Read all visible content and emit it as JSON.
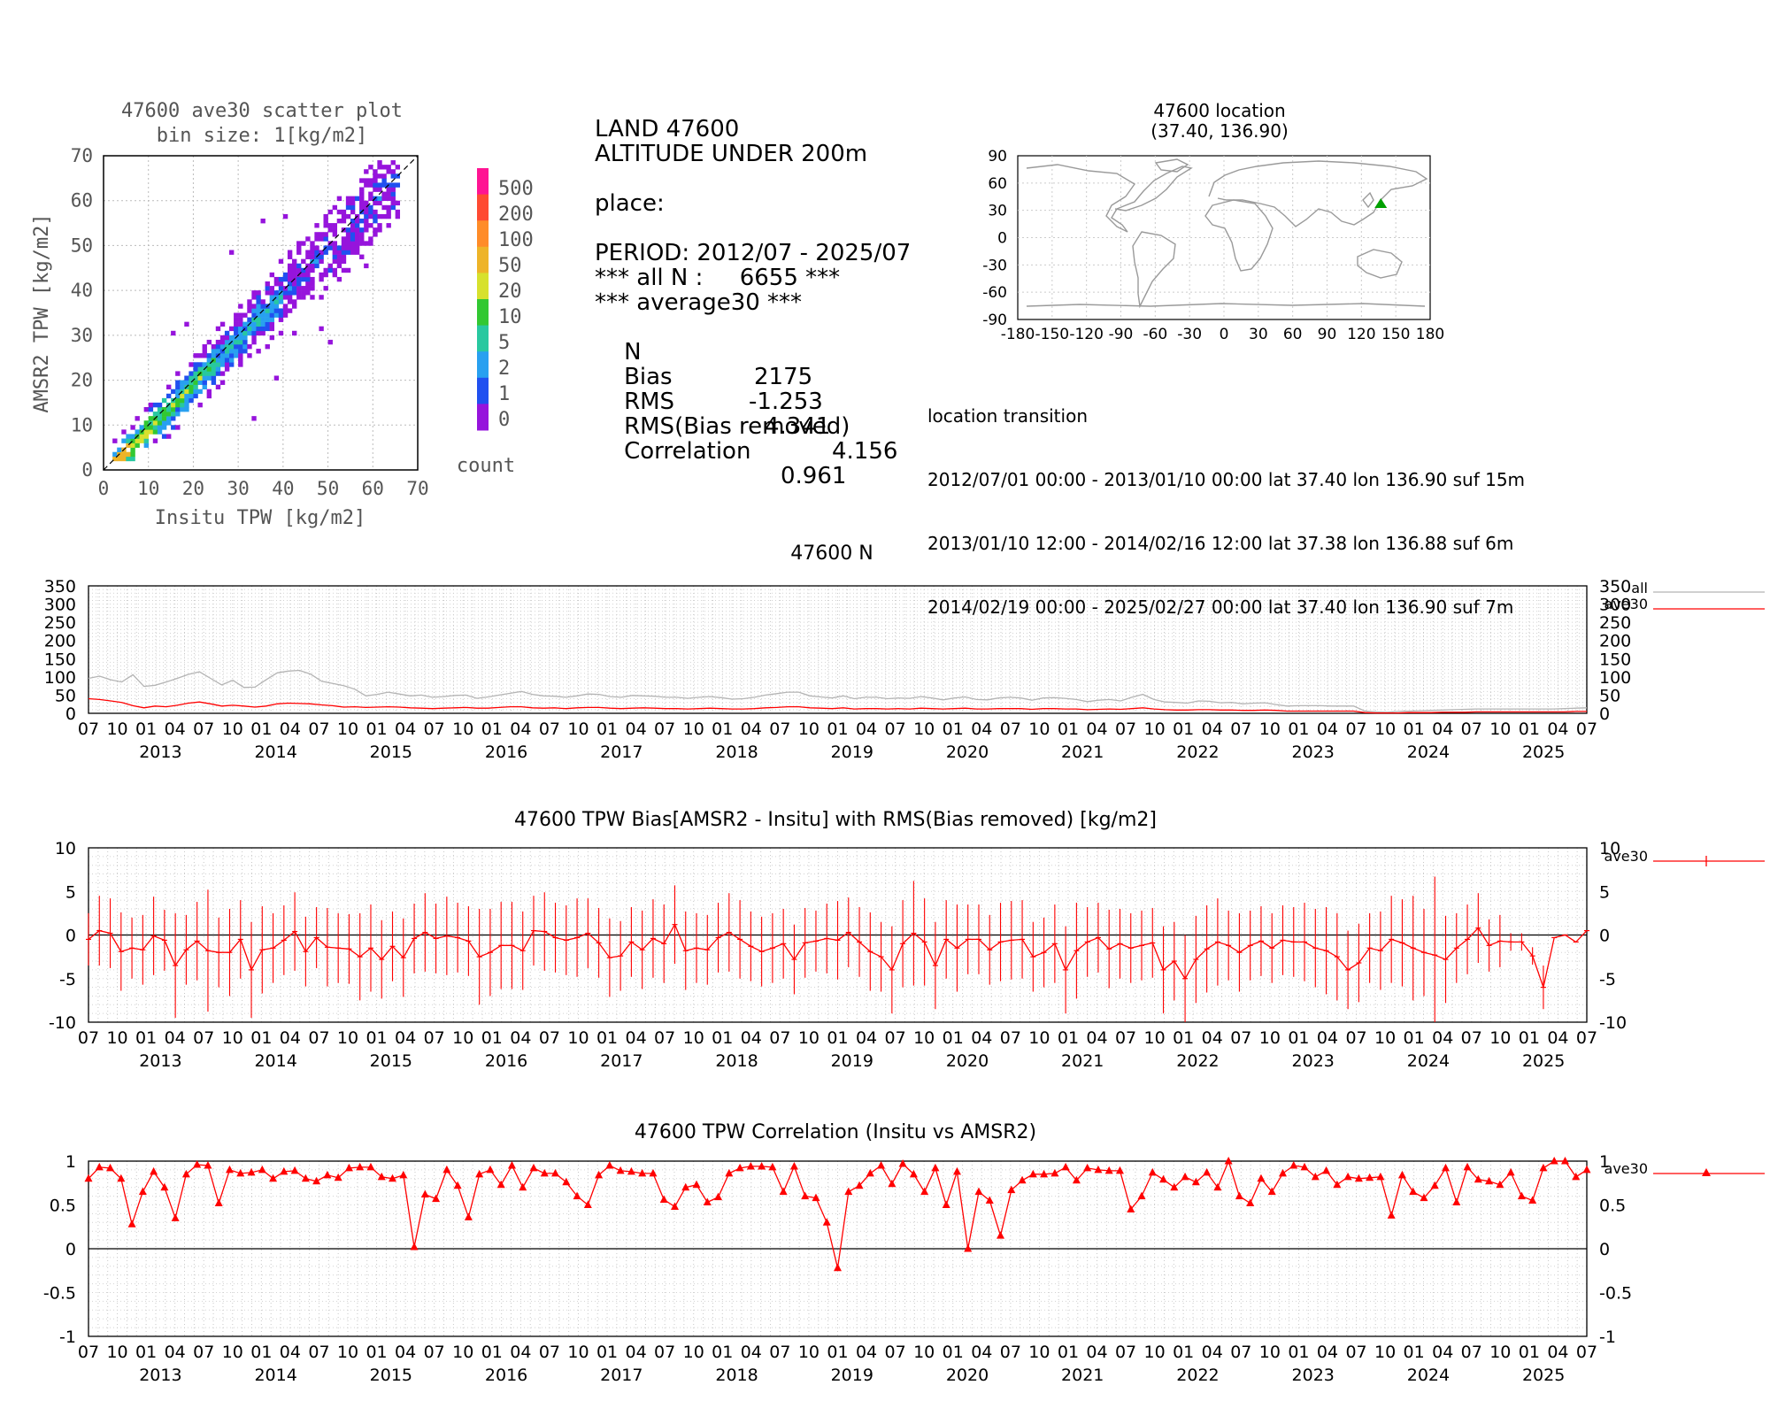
{
  "scatter": {
    "title_line1": "47600 ave30 scatter plot",
    "title_line2": "bin size: 1[kg/m2]",
    "xlabel": "Insitu TPW [kg/m2]",
    "ylabel": "AMSR2 TPW [kg/m2]",
    "ticks": [
      "0",
      "10",
      "20",
      "30",
      "40",
      "50",
      "60",
      "70"
    ],
    "colorbar_labels": [
      "500",
      "200",
      "100",
      "50",
      "20",
      "10",
      "5",
      "2",
      "1",
      "0"
    ],
    "colorbar_colors": [
      "#ff1493",
      "#ff4a32",
      "#ff8c28",
      "#eeb428",
      "#d7e12d",
      "#32c832",
      "#28c8a0",
      "#28a0f0",
      "#2050f0",
      "#9614dc"
    ],
    "colorbar_title": "count"
  },
  "stats": {
    "line1": "LAND 47600",
    "line2": "ALTITUDE UNDER 200m",
    "place": "place:",
    "period": "PERIOD: 2012/07 - 2025/07",
    "alln": "*** all N :     6655 ***",
    "avg": "*** average30 ***",
    "n_label": "N",
    "n_value": "2175",
    "bias_label": "Bias",
    "bias_value": "-1.253",
    "rms_label": "RMS",
    "rms_value": "4.341",
    "rmsb_label": "RMS(Bias removed)",
    "rmsb_value": "4.156",
    "corr_label": "Correlation",
    "corr_value": "0.961"
  },
  "map": {
    "title_line1": "47600 location",
    "title_line2": "(37.40, 136.90)",
    "yticks": [
      "90",
      "60",
      "30",
      "0",
      "-30",
      "-60",
      "-90"
    ],
    "xticks": [
      "-180",
      "-150",
      "-120",
      "-90",
      "-60",
      "-30",
      "0",
      "30",
      "60",
      "90",
      "120",
      "150",
      "180"
    ],
    "lat": 37.4,
    "lon": 136.9,
    "marker_color": "#00a000"
  },
  "transition": {
    "title": "location transition",
    "rows": [
      "2012/07/01 00:00 - 2013/01/10 00:00 lat 37.40 lon 136.90 suf 15m",
      "2013/01/10 12:00 - 2014/02/16 12:00 lat 37.38 lon 136.88 suf 6m",
      "2014/02/19 00:00 - 2025/02/27 00:00 lat 37.40 lon 136.90 suf 7m"
    ]
  },
  "time_axis": {
    "month_labels": [
      "07",
      "10",
      "01",
      "04"
    ],
    "years": [
      "2013",
      "2014",
      "2015",
      "2016",
      "2017",
      "2018",
      "2019",
      "2020",
      "2021",
      "2022",
      "2023",
      "2024",
      "2025"
    ]
  },
  "chart_data": [
    {
      "type": "line",
      "title": "47600 N",
      "ylim": [
        0,
        350
      ],
      "yticks": [
        "350",
        "300",
        "250",
        "200",
        "150",
        "100",
        "50",
        "0"
      ],
      "series": [
        {
          "name": "all",
          "color": "#b4b4b4"
        },
        {
          "name": "ave30",
          "color": "#ff0000"
        }
      ],
      "all": [
        96,
        102,
        92,
        86,
        106,
        74,
        77,
        86,
        96,
        107,
        114,
        96,
        78,
        91,
        71,
        72,
        92,
        111,
        116,
        118,
        108,
        88,
        82,
        76,
        66,
        48,
        52,
        58,
        53,
        48,
        50,
        44,
        46,
        49,
        50,
        41,
        45,
        50,
        55,
        60,
        52,
        48,
        47,
        44,
        48,
        53,
        52,
        46,
        44,
        49,
        48,
        47,
        44,
        44,
        41,
        44,
        46,
        43,
        39,
        40,
        44,
        50,
        54,
        58,
        58,
        48,
        45,
        42,
        48,
        40,
        44,
        44,
        40,
        42,
        41,
        46,
        42,
        37,
        42,
        45,
        38,
        37,
        42,
        44,
        42,
        36,
        42,
        43,
        41,
        38,
        32,
        36,
        38,
        34,
        44,
        52,
        38,
        31,
        30,
        28,
        34,
        33,
        29,
        30,
        26,
        28,
        29,
        24,
        20,
        21,
        21,
        21,
        20,
        20,
        20,
        6,
        4,
        3,
        5,
        6,
        7,
        8,
        9,
        10,
        11,
        12,
        12,
        12,
        12,
        12,
        12,
        12,
        12,
        13,
        14,
        15
      ],
      "ave30": [
        40,
        38,
        34,
        30,
        21,
        15,
        20,
        18,
        22,
        28,
        31,
        26,
        20,
        22,
        20,
        17,
        20,
        26,
        28,
        27,
        26,
        23,
        21,
        17,
        18,
        16,
        17,
        18,
        17,
        15,
        14,
        13,
        14,
        15,
        16,
        14,
        14,
        16,
        18,
        18,
        15,
        14,
        15,
        13,
        15,
        16,
        16,
        14,
        13,
        14,
        15,
        14,
        13,
        13,
        12,
        13,
        14,
        13,
        12,
        12,
        13,
        15,
        16,
        18,
        18,
        15,
        14,
        13,
        15,
        12,
        13,
        13,
        12,
        13,
        12,
        14,
        13,
        12,
        13,
        14,
        12,
        12,
        13,
        13,
        13,
        11,
        13,
        13,
        12,
        12,
        10,
        11,
        12,
        11,
        13,
        15,
        12,
        10,
        9,
        9,
        10,
        10,
        9,
        9,
        8,
        8,
        9,
        8,
        6,
        6,
        6,
        6,
        6,
        6,
        6,
        2,
        1,
        1,
        1,
        2,
        2,
        2,
        3,
        3,
        3,
        4,
        4,
        4,
        4,
        4,
        4,
        4,
        4,
        4,
        5,
        5
      ]
    },
    {
      "type": "line",
      "title": "47600 TPW Bias[AMSR2 - Insitu] with RMS(Bias removed) [kg/m2]",
      "ylim": [
        -10,
        10
      ],
      "yticks": [
        "10",
        "5",
        "0",
        "-5",
        "-10"
      ],
      "series": [
        {
          "name": "ave30",
          "color": "#ff0000"
        }
      ],
      "bias": [
        -0.5,
        0.5,
        0.2,
        -1.9,
        -1.5,
        -1.7,
        -0.1,
        -0.6,
        -3.5,
        -1.7,
        -0.7,
        -1.8,
        -2.0,
        -2.0,
        -0.5,
        -4.0,
        -1.7,
        -1.5,
        -0.6,
        0.4,
        -1.9,
        -0.3,
        -1.4,
        -1.5,
        -1.6,
        -2.5,
        -1.5,
        -2.8,
        -1.3,
        -2.6,
        -0.4,
        0.3,
        -0.4,
        -0.1,
        -0.3,
        -0.7,
        -2.5,
        -2.0,
        -1.2,
        -1.2,
        -1.8,
        0.5,
        0.4,
        -0.3,
        -0.6,
        -0.3,
        0.2,
        -0.9,
        -2.6,
        -2.4,
        -0.8,
        -1.7,
        -0.4,
        -1.0,
        1.2,
        -1.8,
        -1.5,
        -1.7,
        -0.3,
        0.3,
        -0.5,
        -1.3,
        -1.9,
        -1.5,
        -1.0,
        -2.8,
        -0.9,
        -0.7,
        -0.4,
        -0.6,
        0.3,
        -0.8,
        -1.9,
        -2.5,
        -4.0,
        -1.0,
        0.2,
        -0.8,
        -3.5,
        -0.5,
        -1.5,
        -0.5,
        -0.5,
        -1.7,
        -0.8,
        -0.6,
        -0.5,
        -2.5,
        -2.0,
        -1.0,
        -4.0,
        -1.8,
        -0.8,
        -0.3,
        -1.6,
        -1.0,
        -1.5,
        -1.2,
        -0.9,
        -4.0,
        -3.0,
        -5.0,
        -2.8,
        -1.6,
        -0.8,
        -1.2,
        -2.0,
        -1.2,
        -0.7,
        -1.5,
        -0.6,
        -0.8,
        -0.8,
        -1.5,
        -1.8,
        -2.5,
        -4.0,
        -3.2,
        -1.5,
        -1.8,
        -0.5,
        -0.9,
        -1.5,
        -2.0,
        -2.3,
        -2.8,
        -1.5,
        -0.5,
        0.8,
        -1.2,
        -0.7,
        -0.8,
        -0.8,
        -2.4,
        -6.0,
        -0.3,
        0.0,
        -0.8,
        0.5
      ],
      "rms": [
        3,
        4,
        4,
        4.5,
        3.5,
        4,
        4.5,
        3.5,
        6,
        4,
        4.5,
        7,
        4,
        5,
        4.5,
        5.5,
        5,
        4,
        4,
        4.5,
        4,
        3.5,
        4.5,
        4,
        4,
        5,
        5,
        4.5,
        4,
        4.5,
        4,
        4.5,
        4,
        4.5,
        4,
        4,
        5.5,
        5,
        5,
        5,
        4.5,
        4,
        4.5,
        4,
        4,
        4.5,
        4,
        4,
        4.5,
        4,
        4,
        4.5,
        4.5,
        4.5,
        4.5,
        4.5,
        4,
        4,
        4,
        4.5,
        4.5,
        4,
        4,
        4,
        4,
        4,
        4,
        3.5,
        4,
        4.5,
        4,
        4,
        4.5,
        4,
        5,
        5,
        6,
        5,
        5,
        4.5,
        5,
        4,
        4,
        4,
        4.5,
        4.5,
        4.5,
        4,
        4,
        4.5,
        5,
        5.5,
        4,
        4,
        4.5,
        4,
        4,
        4,
        4,
        5,
        4.5,
        5,
        5,
        5,
        5,
        4,
        4.5,
        4,
        4,
        4,
        4,
        4,
        4.5,
        4.5,
        5,
        5,
        4.5,
        4.5,
        4,
        4.5,
        5,
        5,
        6,
        5,
        9,
        5,
        4,
        4,
        4,
        3,
        3,
        1,
        1,
        1,
        2.5
      ]
    },
    {
      "type": "line",
      "title": "47600 TPW Correlation (Insitu vs AMSR2)",
      "ylim": [
        -1,
        1
      ],
      "yticks": [
        "1",
        "0.5",
        "0",
        "-0.5",
        "-1"
      ],
      "series": [
        {
          "name": "ave30",
          "color": "#ff0000"
        }
      ],
      "corr": [
        0.8,
        0.93,
        0.92,
        0.8,
        0.28,
        0.65,
        0.88,
        0.7,
        0.35,
        0.85,
        0.96,
        0.95,
        0.52,
        0.9,
        0.86,
        0.87,
        0.9,
        0.8,
        0.88,
        0.89,
        0.8,
        0.77,
        0.84,
        0.81,
        0.92,
        0.93,
        0.93,
        0.82,
        0.8,
        0.84,
        0.02,
        0.62,
        0.57,
        0.9,
        0.72,
        0.36,
        0.85,
        0.9,
        0.73,
        0.95,
        0.7,
        0.92,
        0.86,
        0.86,
        0.76,
        0.6,
        0.5,
        0.84,
        0.95,
        0.89,
        0.88,
        0.86,
        0.86,
        0.56,
        0.48,
        0.7,
        0.73,
        0.53,
        0.59,
        0.86,
        0.92,
        0.94,
        0.94,
        0.93,
        0.65,
        0.94,
        0.6,
        0.58,
        0.3,
        -0.22,
        0.65,
        0.72,
        0.86,
        0.95,
        0.74,
        0.97,
        0.85,
        0.65,
        0.92,
        0.5,
        0.88,
        0.0,
        0.65,
        0.55,
        0.15,
        0.67,
        0.78,
        0.85,
        0.85,
        0.86,
        0.93,
        0.78,
        0.92,
        0.9,
        0.89,
        0.89,
        0.45,
        0.6,
        0.87,
        0.79,
        0.7,
        0.82,
        0.76,
        0.87,
        0.7,
        1.0,
        0.6,
        0.52,
        0.8,
        0.65,
        0.86,
        0.95,
        0.93,
        0.82,
        0.89,
        0.73,
        0.82,
        0.8,
        0.81,
        0.82,
        0.38,
        0.84,
        0.65,
        0.58,
        0.72,
        0.92,
        0.53,
        0.93,
        0.79,
        0.77,
        0.73,
        0.87,
        0.6,
        0.55,
        0.92,
        1.0,
        1.0,
        0.82,
        0.9
      ]
    }
  ],
  "legend": {
    "all": "all",
    "ave30": "ave30"
  }
}
